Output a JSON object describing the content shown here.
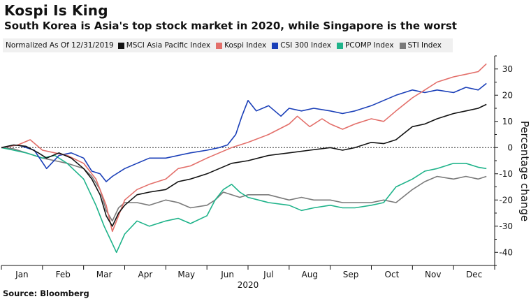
{
  "title": "Kospi Is King",
  "subtitle": "South Korea is Asia's top stock market in 2020, while Singapore is the worst",
  "source": "Source: Bloomberg",
  "chart_data": {
    "type": "line",
    "legend_note": "Normalized As Of 12/31/2019",
    "xlabel": "2020",
    "ylabel": "Percentage change",
    "ylim": [
      -45,
      35
    ],
    "yticks": [
      "30",
      "20",
      "10",
      "0",
      "-10",
      "-20",
      "-30",
      "-40"
    ],
    "ytick_values": [
      30,
      20,
      10,
      0,
      -10,
      -20,
      -30,
      -40
    ],
    "months": [
      "Jan",
      "Feb",
      "Mar",
      "Apr",
      "May",
      "Jun",
      "Jul",
      "Aug",
      "Sep",
      "Oct",
      "Nov",
      "Dec"
    ],
    "baseline": 0,
    "x_unit": "month index (0 = 12/31/2019, 12 = 12/31/2020)",
    "series": [
      {
        "name": "MSCI Asia Pacific Index",
        "color": "#111111",
        "points": [
          [
            0,
            0
          ],
          [
            0.3,
            1
          ],
          [
            0.6,
            0.5
          ],
          [
            0.9,
            -2
          ],
          [
            1.1,
            -4
          ],
          [
            1.4,
            -2
          ],
          [
            1.7,
            -4
          ],
          [
            2.0,
            -8
          ],
          [
            2.2,
            -12
          ],
          [
            2.4,
            -18
          ],
          [
            2.55,
            -26
          ],
          [
            2.7,
            -30
          ],
          [
            2.85,
            -25
          ],
          [
            3.0,
            -22
          ],
          [
            3.3,
            -18
          ],
          [
            3.6,
            -17
          ],
          [
            4.0,
            -16
          ],
          [
            4.3,
            -13
          ],
          [
            4.6,
            -12
          ],
          [
            5.0,
            -10
          ],
          [
            5.3,
            -8
          ],
          [
            5.6,
            -6
          ],
          [
            6.0,
            -5
          ],
          [
            6.5,
            -3
          ],
          [
            7.0,
            -2
          ],
          [
            7.5,
            -1
          ],
          [
            8.0,
            0
          ],
          [
            8.3,
            -1
          ],
          [
            8.6,
            0
          ],
          [
            9.0,
            2
          ],
          [
            9.3,
            1.5
          ],
          [
            9.6,
            3
          ],
          [
            10.0,
            8
          ],
          [
            10.3,
            9
          ],
          [
            10.6,
            11
          ],
          [
            11.0,
            13
          ],
          [
            11.3,
            14
          ],
          [
            11.6,
            15
          ],
          [
            11.8,
            16.5
          ]
        ]
      },
      {
        "name": "Kospi Index",
        "color": "#e36f6a",
        "points": [
          [
            0,
            0
          ],
          [
            0.4,
            1
          ],
          [
            0.7,
            3
          ],
          [
            1.0,
            -1
          ],
          [
            1.3,
            -2
          ],
          [
            1.6,
            -3
          ],
          [
            2.0,
            -6
          ],
          [
            2.3,
            -12
          ],
          [
            2.55,
            -22
          ],
          [
            2.7,
            -32
          ],
          [
            2.85,
            -26
          ],
          [
            3.0,
            -20
          ],
          [
            3.3,
            -16
          ],
          [
            3.6,
            -14
          ],
          [
            4.0,
            -12
          ],
          [
            4.3,
            -8
          ],
          [
            4.6,
            -7
          ],
          [
            5.0,
            -4
          ],
          [
            5.3,
            -2
          ],
          [
            5.6,
            0
          ],
          [
            6.0,
            2
          ],
          [
            6.5,
            5
          ],
          [
            7.0,
            9
          ],
          [
            7.2,
            12
          ],
          [
            7.5,
            8
          ],
          [
            7.8,
            11
          ],
          [
            8.0,
            9
          ],
          [
            8.3,
            7
          ],
          [
            8.6,
            9
          ],
          [
            9.0,
            11
          ],
          [
            9.3,
            10
          ],
          [
            9.6,
            14
          ],
          [
            10.0,
            19
          ],
          [
            10.3,
            22
          ],
          [
            10.6,
            25
          ],
          [
            11.0,
            27
          ],
          [
            11.3,
            28
          ],
          [
            11.6,
            29
          ],
          [
            11.8,
            32
          ]
        ]
      },
      {
        "name": "CSI 300 Index",
        "color": "#1a3fb8",
        "points": [
          [
            0,
            0
          ],
          [
            0.4,
            1
          ],
          [
            0.8,
            -1
          ],
          [
            1.1,
            -8
          ],
          [
            1.4,
            -3
          ],
          [
            1.7,
            -2
          ],
          [
            2.0,
            -4
          ],
          [
            2.2,
            -9
          ],
          [
            2.4,
            -10
          ],
          [
            2.55,
            -13
          ],
          [
            2.7,
            -11
          ],
          [
            3.0,
            -8
          ],
          [
            3.3,
            -6
          ],
          [
            3.6,
            -4
          ],
          [
            4.0,
            -4
          ],
          [
            4.3,
            -3
          ],
          [
            4.6,
            -2
          ],
          [
            5.0,
            -1
          ],
          [
            5.3,
            0
          ],
          [
            5.5,
            1
          ],
          [
            5.7,
            5
          ],
          [
            5.85,
            12
          ],
          [
            6.0,
            18
          ],
          [
            6.2,
            14
          ],
          [
            6.5,
            16
          ],
          [
            6.8,
            12
          ],
          [
            7.0,
            15
          ],
          [
            7.3,
            14
          ],
          [
            7.6,
            15
          ],
          [
            8.0,
            14
          ],
          [
            8.3,
            13
          ],
          [
            8.6,
            14
          ],
          [
            9.0,
            16
          ],
          [
            9.3,
            18
          ],
          [
            9.6,
            20
          ],
          [
            10.0,
            22
          ],
          [
            10.3,
            21
          ],
          [
            10.6,
            22
          ],
          [
            11.0,
            21
          ],
          [
            11.3,
            23
          ],
          [
            11.6,
            22
          ],
          [
            11.8,
            24.5
          ]
        ]
      },
      {
        "name": "PCOMP Index",
        "color": "#1fb38a",
        "points": [
          [
            0,
            0
          ],
          [
            0.3,
            -1
          ],
          [
            0.6,
            -2
          ],
          [
            1.0,
            -4
          ],
          [
            1.3,
            -3
          ],
          [
            1.6,
            -6
          ],
          [
            2.0,
            -12
          ],
          [
            2.3,
            -22
          ],
          [
            2.5,
            -30
          ],
          [
            2.65,
            -35
          ],
          [
            2.8,
            -40
          ],
          [
            3.0,
            -33
          ],
          [
            3.3,
            -28
          ],
          [
            3.6,
            -30
          ],
          [
            4.0,
            -28
          ],
          [
            4.3,
            -27
          ],
          [
            4.6,
            -29
          ],
          [
            5.0,
            -26
          ],
          [
            5.2,
            -20
          ],
          [
            5.4,
            -16
          ],
          [
            5.6,
            -14
          ],
          [
            5.8,
            -17
          ],
          [
            6.0,
            -19
          ],
          [
            6.5,
            -21
          ],
          [
            7.0,
            -22
          ],
          [
            7.3,
            -24
          ],
          [
            7.6,
            -23
          ],
          [
            8.0,
            -22
          ],
          [
            8.3,
            -23
          ],
          [
            8.6,
            -23
          ],
          [
            9.0,
            -22
          ],
          [
            9.3,
            -21
          ],
          [
            9.6,
            -15
          ],
          [
            10.0,
            -12
          ],
          [
            10.3,
            -9
          ],
          [
            10.6,
            -8
          ],
          [
            11.0,
            -6
          ],
          [
            11.3,
            -6
          ],
          [
            11.6,
            -7.5
          ],
          [
            11.8,
            -8
          ]
        ]
      },
      {
        "name": "STI Index",
        "color": "#7a7a7a",
        "points": [
          [
            0,
            0
          ],
          [
            0.3,
            -0.5
          ],
          [
            0.6,
            -2
          ],
          [
            1.0,
            -4
          ],
          [
            1.3,
            -5
          ],
          [
            1.6,
            -6
          ],
          [
            2.0,
            -8
          ],
          [
            2.2,
            -11
          ],
          [
            2.4,
            -16
          ],
          [
            2.55,
            -24
          ],
          [
            2.7,
            -28
          ],
          [
            2.85,
            -23
          ],
          [
            3.0,
            -21
          ],
          [
            3.3,
            -21
          ],
          [
            3.6,
            -22
          ],
          [
            4.0,
            -20
          ],
          [
            4.3,
            -21
          ],
          [
            4.6,
            -23
          ],
          [
            5.0,
            -22
          ],
          [
            5.2,
            -20
          ],
          [
            5.4,
            -17
          ],
          [
            5.6,
            -18
          ],
          [
            5.8,
            -19
          ],
          [
            6.0,
            -18
          ],
          [
            6.5,
            -18
          ],
          [
            7.0,
            -20
          ],
          [
            7.3,
            -19
          ],
          [
            7.6,
            -20
          ],
          [
            8.0,
            -20
          ],
          [
            8.3,
            -21
          ],
          [
            8.6,
            -21
          ],
          [
            9.0,
            -21
          ],
          [
            9.3,
            -20
          ],
          [
            9.6,
            -21
          ],
          [
            10.0,
            -16
          ],
          [
            10.3,
            -13
          ],
          [
            10.6,
            -11
          ],
          [
            11.0,
            -12
          ],
          [
            11.3,
            -11
          ],
          [
            11.6,
            -12
          ],
          [
            11.8,
            -11
          ]
        ]
      }
    ]
  }
}
